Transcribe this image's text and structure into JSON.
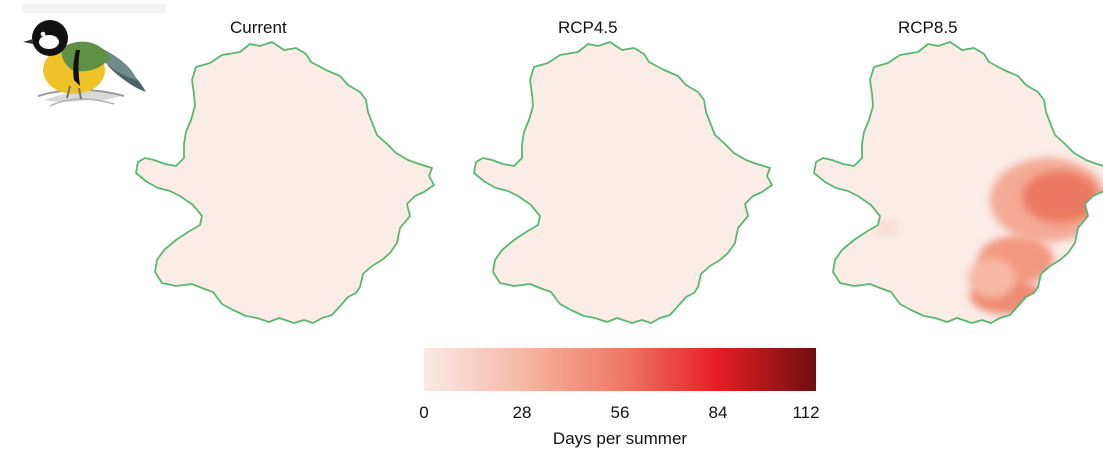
{
  "panels": [
    {
      "title": "Current",
      "hotspot": false
    },
    {
      "title": "RCP4.5",
      "hotspot": false
    },
    {
      "title": "RCP8.5",
      "hotspot": true
    }
  ],
  "colors": {
    "outline": "#58b870",
    "region_fill": "#fbece8",
    "ramp": [
      "#f9ebe7",
      "#f6b8a5",
      "#ef7b66",
      "#e61d25",
      "#6e0e10"
    ]
  },
  "legend": {
    "ticks": [
      "0",
      "28",
      "56",
      "84",
      "112"
    ],
    "range": [
      0,
      112
    ],
    "title": "Days per summer"
  },
  "icons": {
    "bird": "great-tit-illustration"
  }
}
